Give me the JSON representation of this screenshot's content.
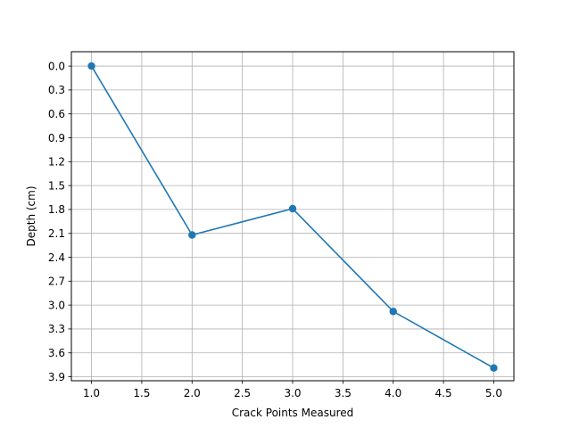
{
  "chart_data": {
    "type": "line",
    "title": "",
    "xlabel": "Crack Points Measured",
    "ylabel": "Depth (cm)",
    "x": [
      1,
      2,
      3,
      4,
      5
    ],
    "series": [
      {
        "values": [
          0.0,
          2.12,
          1.79,
          3.08,
          3.79
        ]
      }
    ],
    "xlim": [
      0.8,
      5.2
    ],
    "ylim": [
      3.95,
      -0.18
    ],
    "y_inverted": true,
    "xticks": [
      "1.0",
      "1.5",
      "2.0",
      "2.5",
      "3.0",
      "3.5",
      "4.0",
      "4.5",
      "5.0"
    ],
    "yticks": [
      "0.0",
      "0.3",
      "0.6",
      "0.9",
      "1.2",
      "1.5",
      "1.8",
      "2.1",
      "2.4",
      "2.7",
      "3.0",
      "3.3",
      "3.6",
      "3.9"
    ],
    "grid": true,
    "marker": "circle",
    "line_color": "#1f77b4",
    "grid_color": "#b0b0b0"
  }
}
